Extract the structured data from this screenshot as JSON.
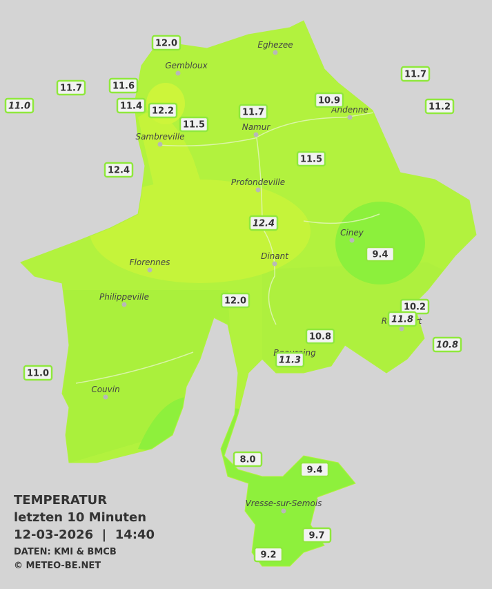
{
  "legend": {
    "title": "TEMPERATUR",
    "period": "letzten 10 Minuten",
    "datetime": "12-03-2026  |  14:40",
    "source": "DATEN: KMI & BMCB",
    "copyright": "© METEO-BE.NET"
  },
  "cities": [
    "Eghezee",
    "Gembloux",
    "Andenne",
    "Namur",
    "Sambreville",
    "Profondeville",
    "Ciney",
    "Dinant",
    "Florennes",
    "Philippeville",
    "Rochefort",
    "Beauraing",
    "Couvin",
    "Vresse-sur-Semois"
  ],
  "stations": [
    {
      "value": "12.0"
    },
    {
      "value": "11.7"
    },
    {
      "value": "11.6"
    },
    {
      "value": "11.0",
      "italic": true
    },
    {
      "value": "11.4"
    },
    {
      "value": "12.2"
    },
    {
      "value": "11.5"
    },
    {
      "value": "11.7"
    },
    {
      "value": "10.9"
    },
    {
      "value": "11.7"
    },
    {
      "value": "11.2"
    },
    {
      "value": "12.4"
    },
    {
      "value": "11.5"
    },
    {
      "value": "12.4",
      "italic": true
    },
    {
      "value": "9.4"
    },
    {
      "value": "12.0"
    },
    {
      "value": "10.2"
    },
    {
      "value": "11.8",
      "italic": true
    },
    {
      "value": "10.8"
    },
    {
      "value": "10.8",
      "italic": true
    },
    {
      "value": "11.3",
      "italic": true
    },
    {
      "value": "11.0"
    },
    {
      "value": "8.0"
    },
    {
      "value": "9.4"
    },
    {
      "value": "9.7"
    },
    {
      "value": "9.2"
    }
  ]
}
